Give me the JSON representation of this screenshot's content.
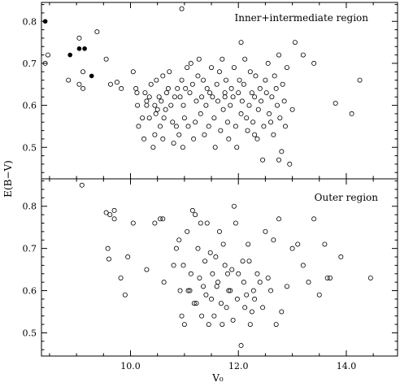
{
  "chart_data": [
    {
      "type": "scatter",
      "title": "Inner+intermediate region",
      "xlabel": "",
      "ylabel": "",
      "xlim": [
        8.35,
        14.95
      ],
      "ylim": [
        0.425,
        0.845
      ],
      "yticks": [
        0.5,
        0.6,
        0.7,
        0.8
      ],
      "grid": false,
      "series": [
        {
          "marker": "open-circle",
          "x": [
            8.42,
            8.47,
            8.85,
            9.12,
            9.05,
            9.05,
            9.12,
            9.38,
            9.55,
            9.63,
            9.75,
            9.83,
            10.05,
            10.1,
            10.12,
            10.13,
            10.15,
            10.22,
            10.25,
            10.27,
            10.3,
            10.3,
            10.35,
            10.35,
            10.38,
            10.42,
            10.45,
            10.45,
            10.47,
            10.48,
            10.5,
            10.53,
            10.55,
            10.57,
            10.6,
            10.6,
            10.62,
            10.65,
            10.67,
            10.7,
            10.72,
            10.75,
            10.78,
            10.8,
            10.82,
            10.85,
            10.87,
            10.9,
            10.92,
            10.95,
            10.97,
            10.98,
            11.0,
            11.02,
            11.05,
            11.07,
            11.1,
            11.12,
            11.15,
            11.17,
            11.2,
            11.22,
            11.25,
            11.27,
            11.3,
            11.32,
            11.35,
            11.37,
            11.4,
            11.42,
            11.45,
            11.47,
            11.5,
            11.52,
            11.55,
            11.57,
            11.6,
            11.62,
            11.65,
            11.67,
            11.7,
            11.72,
            11.75,
            11.77,
            11.8,
            11.82,
            11.85,
            11.87,
            11.9,
            11.92,
            11.95,
            11.97,
            12.0,
            12.02,
            12.05,
            12.07,
            12.1,
            12.12,
            12.15,
            12.17,
            12.2,
            12.22,
            12.25,
            12.27,
            12.3,
            12.32,
            12.35,
            12.37,
            12.4,
            12.42,
            12.45,
            12.47,
            12.5,
            12.52,
            12.55,
            12.57,
            12.6,
            12.62,
            12.65,
            12.67,
            12.7,
            12.72,
            12.75,
            12.77,
            12.8,
            12.82,
            12.85,
            12.87,
            12.9,
            12.95,
            13.0,
            13.05,
            13.2,
            13.4,
            13.8,
            14.1,
            14.25,
            10.95,
            12.3,
            12.75,
            12.05,
            11.75
          ],
          "y": [
            0.7,
            0.72,
            0.66,
            0.64,
            0.76,
            0.65,
            0.68,
            0.775,
            0.71,
            0.65,
            0.655,
            0.64,
            0.68,
            0.64,
            0.63,
            0.6,
            0.55,
            0.57,
            0.52,
            0.63,
            0.6,
            0.61,
            0.62,
            0.57,
            0.65,
            0.5,
            0.53,
            0.6,
            0.58,
            0.66,
            0.59,
            0.62,
            0.55,
            0.61,
            0.67,
            0.52,
            0.57,
            0.59,
            0.63,
            0.64,
            0.68,
            0.6,
            0.56,
            0.51,
            0.62,
            0.55,
            0.64,
            0.53,
            0.62,
            0.66,
            0.5,
            0.6,
            0.57,
            0.64,
            0.69,
            0.55,
            0.63,
            0.7,
            0.65,
            0.52,
            0.56,
            0.61,
            0.67,
            0.71,
            0.58,
            0.62,
            0.66,
            0.53,
            0.6,
            0.64,
            0.55,
            0.63,
            0.69,
            0.62,
            0.57,
            0.5,
            0.65,
            0.61,
            0.68,
            0.54,
            0.71,
            0.59,
            0.63,
            0.66,
            0.56,
            0.52,
            0.6,
            0.64,
            0.62,
            0.69,
            0.55,
            0.5,
            0.63,
            0.66,
            0.58,
            0.61,
            0.65,
            0.71,
            0.57,
            0.54,
            0.6,
            0.68,
            0.63,
            0.56,
            0.62,
            0.67,
            0.52,
            0.59,
            0.64,
            0.61,
            0.47,
            0.55,
            0.66,
            0.63,
            0.7,
            0.58,
            0.56,
            0.62,
            0.53,
            0.67,
            0.64,
            0.6,
            0.72,
            0.57,
            0.49,
            0.65,
            0.61,
            0.55,
            0.69,
            0.46,
            0.59,
            0.75,
            0.72,
            0.7,
            0.605,
            0.58,
            0.66,
            0.83,
            0.53,
            0.47,
            0.75,
            0.62
          ],
          "name": ""
        },
        {
          "marker": "filled-circle",
          "x": [
            8.42,
            8.88,
            9.05,
            9.15,
            9.28
          ],
          "y": [
            0.8,
            0.72,
            0.735,
            0.735,
            0.67
          ],
          "name": ""
        }
      ]
    },
    {
      "type": "scatter",
      "title": "Outer region",
      "xlabel": "V₀",
      "ylabel": "E(B−V)",
      "xlim": [
        8.35,
        14.95
      ],
      "ylim": [
        0.445,
        0.865
      ],
      "xticks": [
        10.0,
        12.0,
        14.0
      ],
      "xticklabels": [
        "10.0",
        "12.0",
        "14.0"
      ],
      "yticks": [
        0.5,
        0.6,
        0.7,
        0.8
      ],
      "grid": false,
      "series": [
        {
          "marker": "open-circle",
          "x": [
            9.1,
            9.55,
            9.62,
            9.7,
            9.7,
            9.82,
            9.9,
            9.95,
            9.58,
            9.6,
            10.05,
            10.3,
            10.45,
            10.55,
            10.6,
            10.62,
            10.8,
            10.85,
            10.9,
            10.92,
            10.95,
            10.98,
            11.0,
            11.05,
            11.07,
            11.1,
            11.12,
            11.15,
            11.18,
            11.2,
            11.22,
            11.25,
            11.28,
            11.3,
            11.32,
            11.35,
            11.38,
            11.4,
            11.42,
            11.45,
            11.48,
            11.5,
            11.52,
            11.55,
            11.58,
            11.6,
            11.62,
            11.65,
            11.68,
            11.7,
            11.72,
            11.75,
            11.78,
            11.8,
            11.82,
            11.85,
            11.88,
            11.9,
            11.92,
            11.95,
            11.98,
            12.0,
            12.05,
            12.08,
            12.1,
            12.12,
            12.15,
            12.18,
            12.2,
            12.22,
            12.25,
            12.28,
            12.3,
            12.35,
            12.4,
            12.45,
            12.5,
            12.55,
            12.6,
            12.65,
            12.7,
            12.75,
            12.8,
            12.9,
            13.0,
            13.1,
            13.2,
            13.3,
            13.4,
            13.5,
            13.6,
            13.65,
            13.7,
            13.9,
            14.45
          ],
          "y": [
            0.85,
            0.785,
            0.78,
            0.79,
            0.77,
            0.63,
            0.59,
            0.68,
            0.7,
            0.675,
            0.76,
            0.65,
            0.76,
            0.77,
            0.77,
            0.62,
            0.66,
            0.7,
            0.72,
            0.6,
            0.54,
            0.66,
            0.52,
            0.74,
            0.6,
            0.6,
            0.64,
            0.79,
            0.57,
            0.78,
            0.57,
            0.7,
            0.63,
            0.76,
            0.54,
            0.61,
            0.67,
            0.59,
            0.76,
            0.52,
            0.69,
            0.58,
            0.64,
            0.54,
            0.68,
            0.61,
            0.62,
            0.74,
            0.57,
            0.52,
            0.71,
            0.66,
            0.56,
            0.64,
            0.6,
            0.6,
            0.65,
            0.53,
            0.8,
            0.76,
            0.58,
            0.64,
            0.47,
            0.67,
            0.62,
            0.56,
            0.59,
            0.71,
            0.67,
            0.52,
            0.55,
            0.6,
            0.58,
            0.64,
            0.62,
            0.56,
            0.74,
            0.63,
            0.6,
            0.72,
            0.52,
            0.77,
            0.55,
            0.61,
            0.7,
            0.71,
            0.66,
            0.62,
            0.77,
            0.59,
            0.71,
            0.63,
            0.63,
            0.68,
            0.63
          ],
          "name": ""
        }
      ]
    }
  ]
}
